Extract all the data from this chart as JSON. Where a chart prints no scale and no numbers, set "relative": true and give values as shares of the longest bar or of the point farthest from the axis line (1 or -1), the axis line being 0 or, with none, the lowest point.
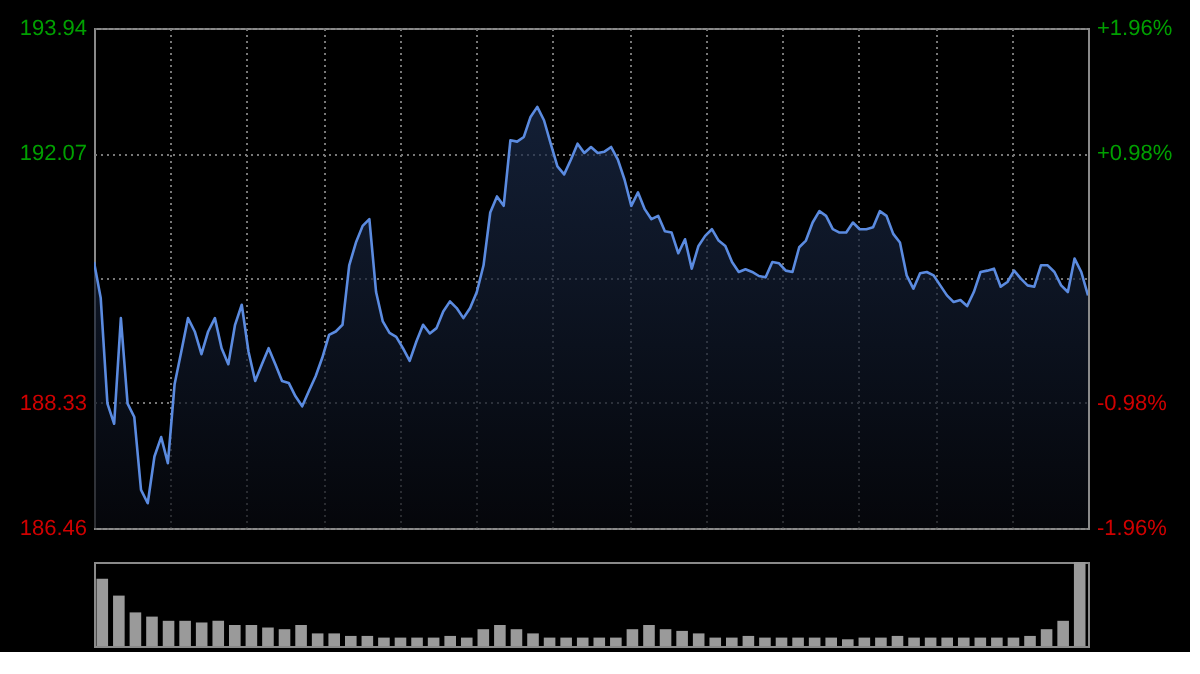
{
  "chart_data": [
    {
      "type": "area",
      "categories": [
        null,
        null,
        null,
        null,
        null,
        null,
        null,
        null,
        null,
        null,
        null,
        null,
        null,
        null,
        null,
        null,
        null,
        null,
        null,
        null,
        null,
        null,
        null,
        null,
        null,
        null,
        null,
        null,
        null,
        null,
        null,
        null,
        null,
        null,
        null,
        null,
        null,
        null,
        null,
        null,
        null,
        null,
        null,
        null,
        null,
        null,
        null,
        null,
        null,
        null,
        null,
        null,
        null,
        null,
        null,
        null,
        null,
        null,
        null,
        null,
        null,
        null,
        null,
        null,
        null,
        null,
        null,
        null,
        null,
        null,
        null,
        null,
        null,
        null,
        null,
        null,
        null,
        null,
        null,
        null,
        null,
        null,
        null,
        null,
        null,
        null,
        null,
        null,
        null,
        null,
        null,
        null,
        null,
        null,
        null,
        null,
        null,
        null,
        null,
        null,
        null,
        null,
        null,
        null,
        null,
        null,
        null,
        null,
        null,
        null,
        null,
        null,
        null,
        null,
        null,
        null,
        null,
        null,
        null,
        null,
        null,
        null,
        null,
        null,
        null,
        null,
        null,
        null,
        null,
        null,
        null,
        null,
        null,
        null,
        null,
        null,
        null,
        null,
        null,
        null,
        null,
        null,
        null,
        null,
        null,
        null,
        null,
        null,
        null
      ],
      "series": [
        {
          "color": "#5b8be0",
          "values": [
            190.44,
            189.9,
            188.32,
            188.02,
            189.6,
            188.32,
            188.12,
            187.03,
            186.83,
            187.53,
            187.82,
            187.43,
            188.61,
            189.1,
            189.6,
            189.4,
            189.06,
            189.4,
            189.6,
            189.15,
            188.91,
            189.5,
            189.8,
            189.1,
            188.66,
            188.91,
            189.15,
            188.91,
            188.66,
            188.63,
            188.43,
            188.28,
            188.51,
            188.73,
            189.01,
            189.35,
            189.4,
            189.5,
            190.39,
            190.73,
            190.98,
            191.08,
            189.99,
            189.55,
            189.38,
            189.32,
            189.15,
            188.96,
            189.25,
            189.5,
            189.37,
            189.45,
            189.7,
            189.85,
            189.75,
            189.6,
            189.75,
            189.99,
            190.39,
            191.18,
            191.42,
            191.28,
            192.26,
            192.24,
            192.31,
            192.61,
            192.76,
            192.56,
            192.21,
            191.87,
            191.75,
            191.97,
            192.21,
            192.07,
            192.16,
            192.07,
            192.09,
            192.16,
            191.97,
            191.67,
            191.28,
            191.48,
            191.23,
            191.08,
            191.13,
            190.9,
            190.88,
            190.57,
            190.78,
            190.34,
            190.68,
            190.83,
            190.93,
            190.76,
            190.68,
            190.44,
            190.29,
            190.33,
            190.29,
            190.23,
            190.21,
            190.44,
            190.42,
            190.31,
            190.29,
            190.66,
            190.76,
            191.03,
            191.2,
            191.13,
            190.93,
            190.88,
            190.88,
            191.03,
            190.93,
            190.93,
            190.96,
            191.2,
            191.13,
            190.86,
            190.73,
            190.24,
            190.04,
            190.27,
            190.29,
            190.24,
            190.09,
            189.94,
            189.84,
            189.87,
            189.78,
            189.99,
            190.29,
            190.31,
            190.34,
            190.07,
            190.14,
            190.31,
            190.19,
            190.09,
            190.07,
            190.39,
            190.39,
            190.29,
            190.09,
            189.99,
            190.49,
            190.29,
            189.94
          ]
        }
      ],
      "ylim": [
        186.46,
        193.94
      ],
      "yticks": [
        186.46,
        188.33,
        {
          "value": 190.2,
          "label": null
        },
        192.07,
        193.94
      ],
      "y2lim": [
        -1.96,
        1.96
      ],
      "y2ticks": [
        {
          "value": -1.96,
          "label": "-1.96%"
        },
        {
          "value": -0.98,
          "label": "-0.98%"
        },
        {
          "value": 0,
          "label": null
        },
        {
          "value": 0.98,
          "label": "+0.98%"
        },
        {
          "value": 1.96,
          "label": "+1.96%"
        }
      ],
      "grid": true
    },
    {
      "type": "bar",
      "relative": true,
      "categories": [
        null,
        null,
        null,
        null,
        null,
        null,
        null,
        null,
        null,
        null,
        null,
        null,
        null,
        null,
        null,
        null,
        null,
        null,
        null,
        null,
        null,
        null,
        null,
        null,
        null,
        null,
        null,
        null,
        null,
        null,
        null,
        null,
        null,
        null,
        null,
        null,
        null,
        null,
        null,
        null,
        null,
        null,
        null,
        null,
        null,
        null,
        null,
        null,
        null,
        null,
        null,
        null,
        null,
        null,
        null,
        null,
        null,
        null,
        null,
        null
      ],
      "values": [
        0.8,
        0.6,
        0.4,
        0.35,
        0.3,
        0.3,
        0.28,
        0.3,
        0.25,
        0.25,
        0.22,
        0.2,
        0.25,
        0.15,
        0.15,
        0.12,
        0.12,
        0.1,
        0.1,
        0.1,
        0.1,
        0.12,
        0.1,
        0.2,
        0.25,
        0.2,
        0.15,
        0.1,
        0.1,
        0.1,
        0.1,
        0.1,
        0.2,
        0.25,
        0.2,
        0.18,
        0.15,
        0.1,
        0.1,
        0.12,
        0.1,
        0.1,
        0.1,
        0.1,
        0.1,
        0.08,
        0.1,
        0.1,
        0.12,
        0.1,
        0.1,
        0.1,
        0.1,
        0.1,
        0.1,
        0.1,
        0.12,
        0.2,
        0.3,
        1.0
      ],
      "color": "#9a9a9a"
    }
  ]
}
